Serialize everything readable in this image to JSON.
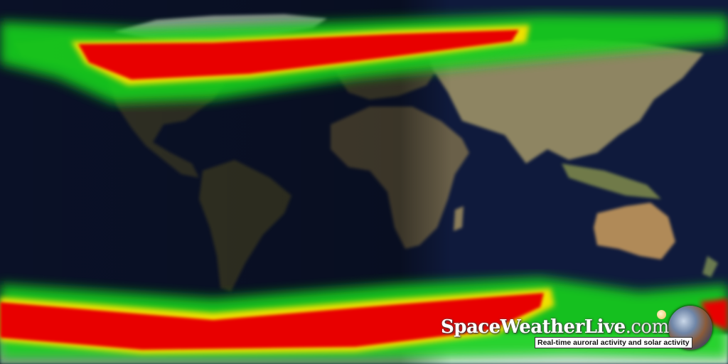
{
  "map": {
    "type": "aurora-forecast-world-map",
    "projection": "equirectangular",
    "colors": {
      "ocean": "#0d1838",
      "aurora_low": "#19d21e",
      "aurora_mid": "#f0e000",
      "aurora_high": "#e80000",
      "land_day": "#8a7f5a",
      "land_night": "#3a3f32"
    }
  },
  "branding": {
    "site_name": "SpaceWeatherLive",
    "site_tld": ".com",
    "tagline": "Real-time auroral activity and solar activity"
  }
}
